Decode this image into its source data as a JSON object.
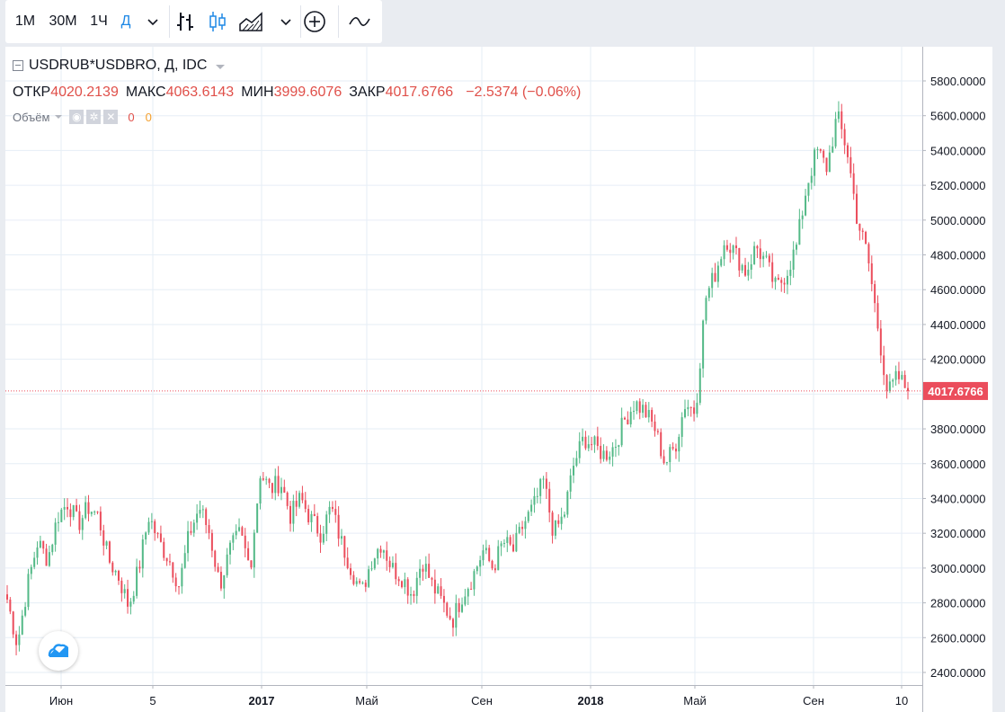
{
  "toolbar": {
    "intervals": [
      {
        "label": "1М",
        "active": false
      },
      {
        "label": "30М",
        "active": false
      },
      {
        "label": "1Ч",
        "active": false
      },
      {
        "label": "Д",
        "active": true
      }
    ],
    "icons": [
      "chevron-down-icon",
      "bars-icon",
      "candles-icon",
      "area-icon",
      "chevron-down-icon",
      "compare-add-icon",
      "indicators-icon"
    ]
  },
  "legend": {
    "symbol": "USDRUB*USDBRO, Д, IDC",
    "open_label": "ОТКР",
    "open": "4020.2139",
    "high_label": "МАКС",
    "high": "4063.6143",
    "low_label": "МИН",
    "low": "3999.6076",
    "close_label": "ЗАКР",
    "close": "4017.6766",
    "change": "−2.5374 (−0.06%)",
    "volume_label": "Объём",
    "volume_value_1": "0",
    "volume_value_2": "0"
  },
  "colors": {
    "up": "#53b987",
    "down": "#eb4d5c",
    "price_line": "#eb4d5c",
    "grid": "#e6eef6",
    "accent": "#1e88e5"
  },
  "chart_data": {
    "type": "candlestick",
    "ylim": [
      2400,
      5900
    ],
    "y_ticks": [
      "2400.0000",
      "2600.0000",
      "2800.0000",
      "3000.0000",
      "3200.0000",
      "3400.0000",
      "3600.0000",
      "3800.0000",
      "4000.0000",
      "4200.0000",
      "4400.0000",
      "4600.0000",
      "4800.0000",
      "5000.0000",
      "5200.0000",
      "5400.0000",
      "5600.0000",
      "5800.0000"
    ],
    "x_ticks": [
      {
        "label": "Июн",
        "bold": false
      },
      {
        "label": "5",
        "bold": false
      },
      {
        "label": "2017",
        "bold": true
      },
      {
        "label": "Май",
        "bold": false
      },
      {
        "label": "Сен",
        "bold": false
      },
      {
        "label": "2018",
        "bold": true
      },
      {
        "label": "Май",
        "bold": false
      },
      {
        "label": "Сен",
        "bold": false
      },
      {
        "label": "10",
        "bold": false
      }
    ],
    "last_price": 4017.6766,
    "last_price_label": "4017.6766",
    "series_close": [
      2820,
      2560,
      2900,
      3150,
      3050,
      3300,
      3380,
      3250,
      3350,
      3300,
      3050,
      2950,
      2780,
      3000,
      3300,
      3150,
      3050,
      2900,
      3200,
      3350,
      3200,
      2900,
      3100,
      3200,
      3000,
      3550,
      3450,
      3500,
      3300,
      3400,
      3280,
      3200,
      3350,
      3150,
      3000,
      2850,
      3050,
      3150,
      3000,
      2950,
      2850,
      3050,
      2900,
      2800,
      2700,
      2850,
      2950,
      3100,
      3000,
      3150,
      3100,
      3250,
      3350,
      3500,
      3200,
      3300,
      3600,
      3750,
      3700,
      3650,
      3700,
      3850,
      3950,
      3900,
      3800,
      3600,
      3700,
      3950,
      3900,
      4550,
      4700,
      4900,
      4800,
      4700,
      4850,
      4750,
      4600,
      4700,
      4850,
      5200,
      5400,
      5300,
      5600,
      5400,
      5000,
      4800,
      4400,
      4000,
      4100,
      4017
    ]
  }
}
